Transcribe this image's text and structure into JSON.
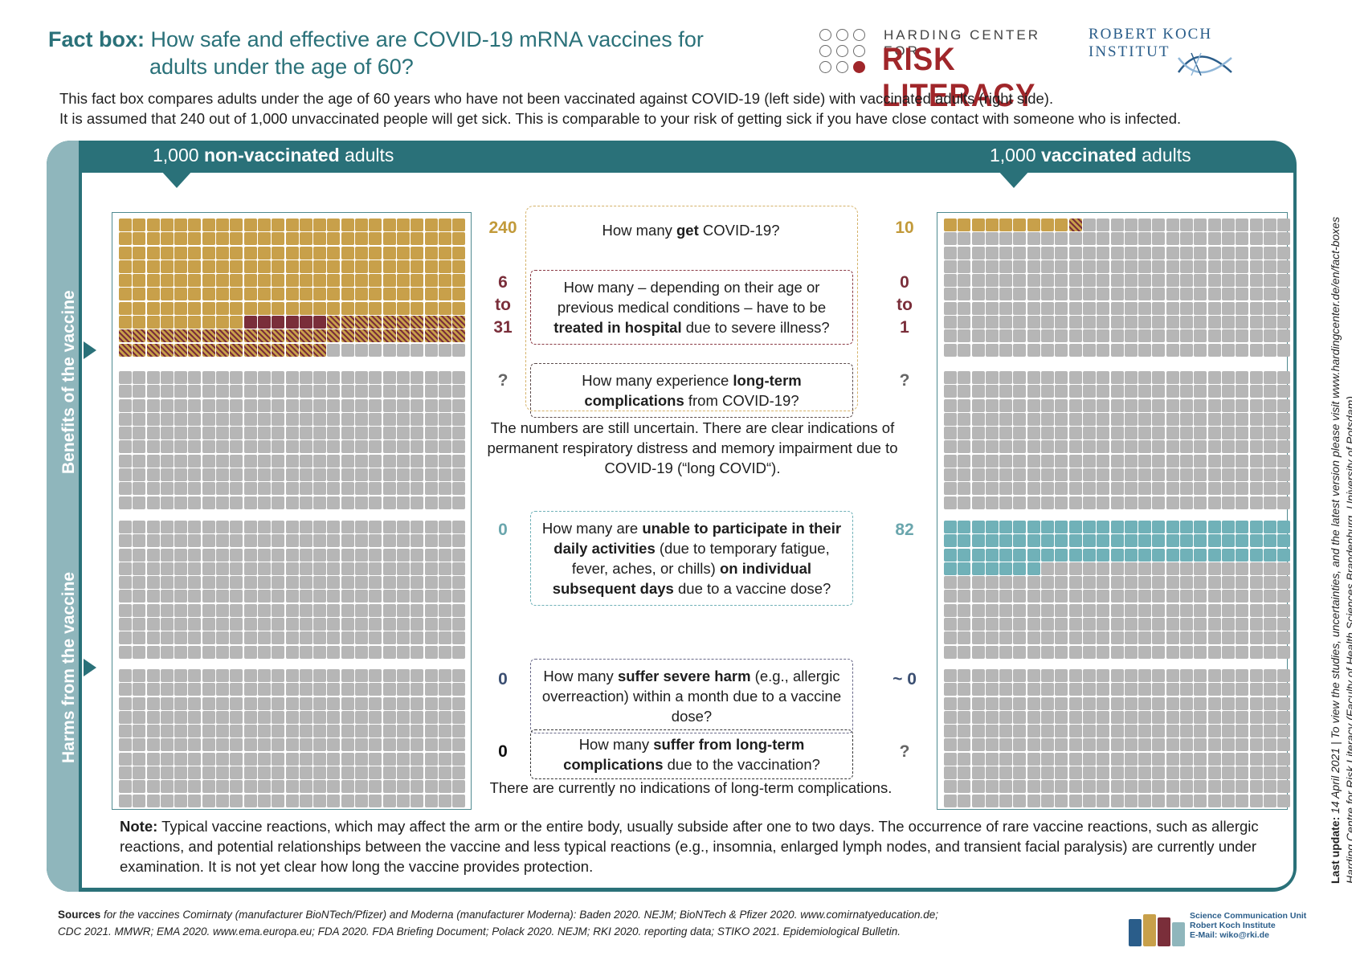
{
  "title": {
    "label": "Fact box:",
    "line1": "How safe and effective are COVID-19 mRNA vaccines for",
    "line2": "adults under the age of 60?"
  },
  "logos": {
    "harding_top": "HARDING CENTER FOR",
    "harding_big": "RISK LITERACY",
    "rki": "ROBERT KOCH INSTITUT"
  },
  "intro": {
    "line1": "This fact box compares adults under the age of 60 years who have not been vaccinated against COVID-19 (left side) with vaccinated adults (right side).",
    "line2": "It is assumed that 240 out of 1,000 unvaccinated people will get sick. This is comparable to your risk of getting sick if you have close contact with someone who is infected."
  },
  "headers": {
    "left_pre": "1,000 ",
    "left_bold": "non-vaccinated",
    "left_post": " adults",
    "right_pre": "1,000 ",
    "right_bold": "vaccinated",
    "right_post": " adults"
  },
  "side_labels": {
    "benefits": "Benefits of the vaccine",
    "harms": "Harms from the vaccine"
  },
  "questions": {
    "q1": {
      "pre": "How many ",
      "bold": "get",
      "post": " COVID-19?",
      "left": "240",
      "right": "10"
    },
    "q2": {
      "pre": "How many – depending on their age or previous medical conditions – have to be ",
      "bold": "treated in hospital",
      "post": " due to severe illness?",
      "left": [
        "6",
        "to",
        "31"
      ],
      "right": [
        "0",
        "to",
        "1"
      ]
    },
    "q3": {
      "pre": "How many experience ",
      "bold": "long-term complications",
      "post": " from COVID-19?",
      "left": "?",
      "right": "?"
    },
    "q4": {
      "pre": "How many are ",
      "bold1": "unable to participate in their daily activities",
      "mid": " (due to temporary fatigue, fever, aches, or chills) ",
      "bold2": "on individual subsequent days",
      "post": " due to a vaccine dose?",
      "left": "0",
      "right": "82"
    },
    "q5": {
      "pre": "How many ",
      "bold": "suffer severe harm",
      "post": " (e.g., allergic overreaction) within a month due to a vaccine dose?",
      "left": "0",
      "right": "~ 0"
    },
    "q6": {
      "pre": "How many ",
      "bold": "suffer from long-term complications",
      "post": " due to the vaccination?",
      "left": "0",
      "right": "?"
    }
  },
  "uncertain_text": "The numbers are still uncertain. There are clear indications of permanent respiratory distress and memory impairment due to COVID-19 (“long COVID“).",
  "no_indications_text": "There are currently no indications of long-term complications.",
  "note": {
    "label": "Note:",
    "text": " Typical vaccine reactions, which may affect the arm or the entire body, usually subside after one to two days. The occurrence of rare vaccine reactions, such as allergic reactions, and potential relationships between the vaccine and less typical reactions (e.g., insomnia, enlarged lymph nodes, and transient facial paralysis) are currently under examination. It is not yet clear how long the vaccine provides protection."
  },
  "vertical_note": {
    "label": "Last update:",
    "line1": " 14 April 2021 | To view the studies, uncertainties, and the latest version please visit www.hardingcenter.de/en/fact-boxes",
    "line2": "Harding Centre for Risk Literacy (Faculty of Health Sciences Brandenburg, University of Potsdam)"
  },
  "sources": {
    "label": "Sources",
    "line1": " for the vaccines Comirnaty (manufacturer BioNTech/Pfizer) and Moderna (manufacturer Moderna): Baden 2020. NEJM; BioNTech & Pfizer 2020. www.comirnatyeducation.de;",
    "line2": "CDC 2021. MMWR; EMA 2020. www.ema.europa.eu; FDA 2020. FDA Briefing Document; Polack 2020. NEJM; RKI 2020. reporting data; STIKO 2021. Epidemiological Bulletin."
  },
  "scu": {
    "line1": "Science Communication Unit",
    "line2": "Robert Koch Institute",
    "line3": "E-Mail: wiko@rki.de"
  },
  "colors": {
    "teal": "#2a7179",
    "gold": "#c8a04a",
    "maroon": "#7a2e3a",
    "grey": "#b6b6b6",
    "light_teal": "#70b1b8",
    "side": "#8fb6bc",
    "red": "#a0262a"
  },
  "icon_grids": {
    "columns": 25,
    "left_benefits": {
      "rows": 10,
      "gold_count": 240,
      "hatched_from": [
        223,
        239
      ],
      "maroon_from": [
        157,
        165
      ],
      "hatched_gold_range": [
        166,
        239
      ]
    },
    "left_benefits_lower": {
      "rows": 10
    },
    "left_harms_daily": {
      "rows": 10,
      "teal_count": 0
    },
    "left_harms_severe": {
      "rows": 10
    },
    "right_benefits": {
      "rows": 10,
      "gold_count": 10,
      "hatched_index": 9
    },
    "right_benefits_lower": {
      "rows": 10
    },
    "right_harms_daily": {
      "rows": 10,
      "teal_count": 82
    },
    "right_harms_severe": {
      "rows": 10
    }
  }
}
